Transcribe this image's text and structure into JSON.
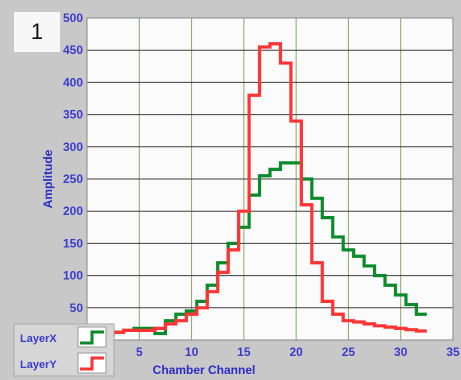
{
  "panel_number": "1",
  "chart_data": {
    "type": "line",
    "xlabel": "Chamber Channel",
    "ylabel": "Amplitude",
    "xlim": [
      0,
      35
    ],
    "ylim": [
      0,
      500
    ],
    "xticks": [
      5,
      10,
      15,
      20,
      25,
      30,
      35
    ],
    "yticks": [
      50,
      100,
      150,
      200,
      250,
      300,
      350,
      400,
      450,
      500
    ],
    "grid": true,
    "legend": "bottom-left",
    "x": [
      1,
      2,
      3,
      4,
      5,
      6,
      7,
      8,
      9,
      10,
      11,
      12,
      13,
      14,
      15,
      16,
      17,
      18,
      19,
      20,
      21,
      22,
      23,
      24,
      25,
      26,
      27,
      28,
      29,
      30,
      31,
      32
    ],
    "series": [
      {
        "name": "LayerX",
        "color": "#0a8a2a",
        "values": [
          5,
          8,
          12,
          15,
          18,
          18,
          10,
          30,
          40,
          45,
          60,
          85,
          120,
          150,
          175,
          225,
          255,
          265,
          275,
          275,
          250,
          220,
          190,
          160,
          140,
          130,
          115,
          100,
          85,
          70,
          55,
          40
        ]
      },
      {
        "name": "LayerY",
        "color": "#ff3333",
        "values": [
          5,
          8,
          12,
          15,
          15,
          15,
          18,
          25,
          30,
          40,
          50,
          75,
          105,
          140,
          200,
          380,
          455,
          460,
          430,
          340,
          210,
          120,
          60,
          40,
          30,
          28,
          25,
          22,
          20,
          18,
          16,
          14
        ]
      }
    ]
  }
}
